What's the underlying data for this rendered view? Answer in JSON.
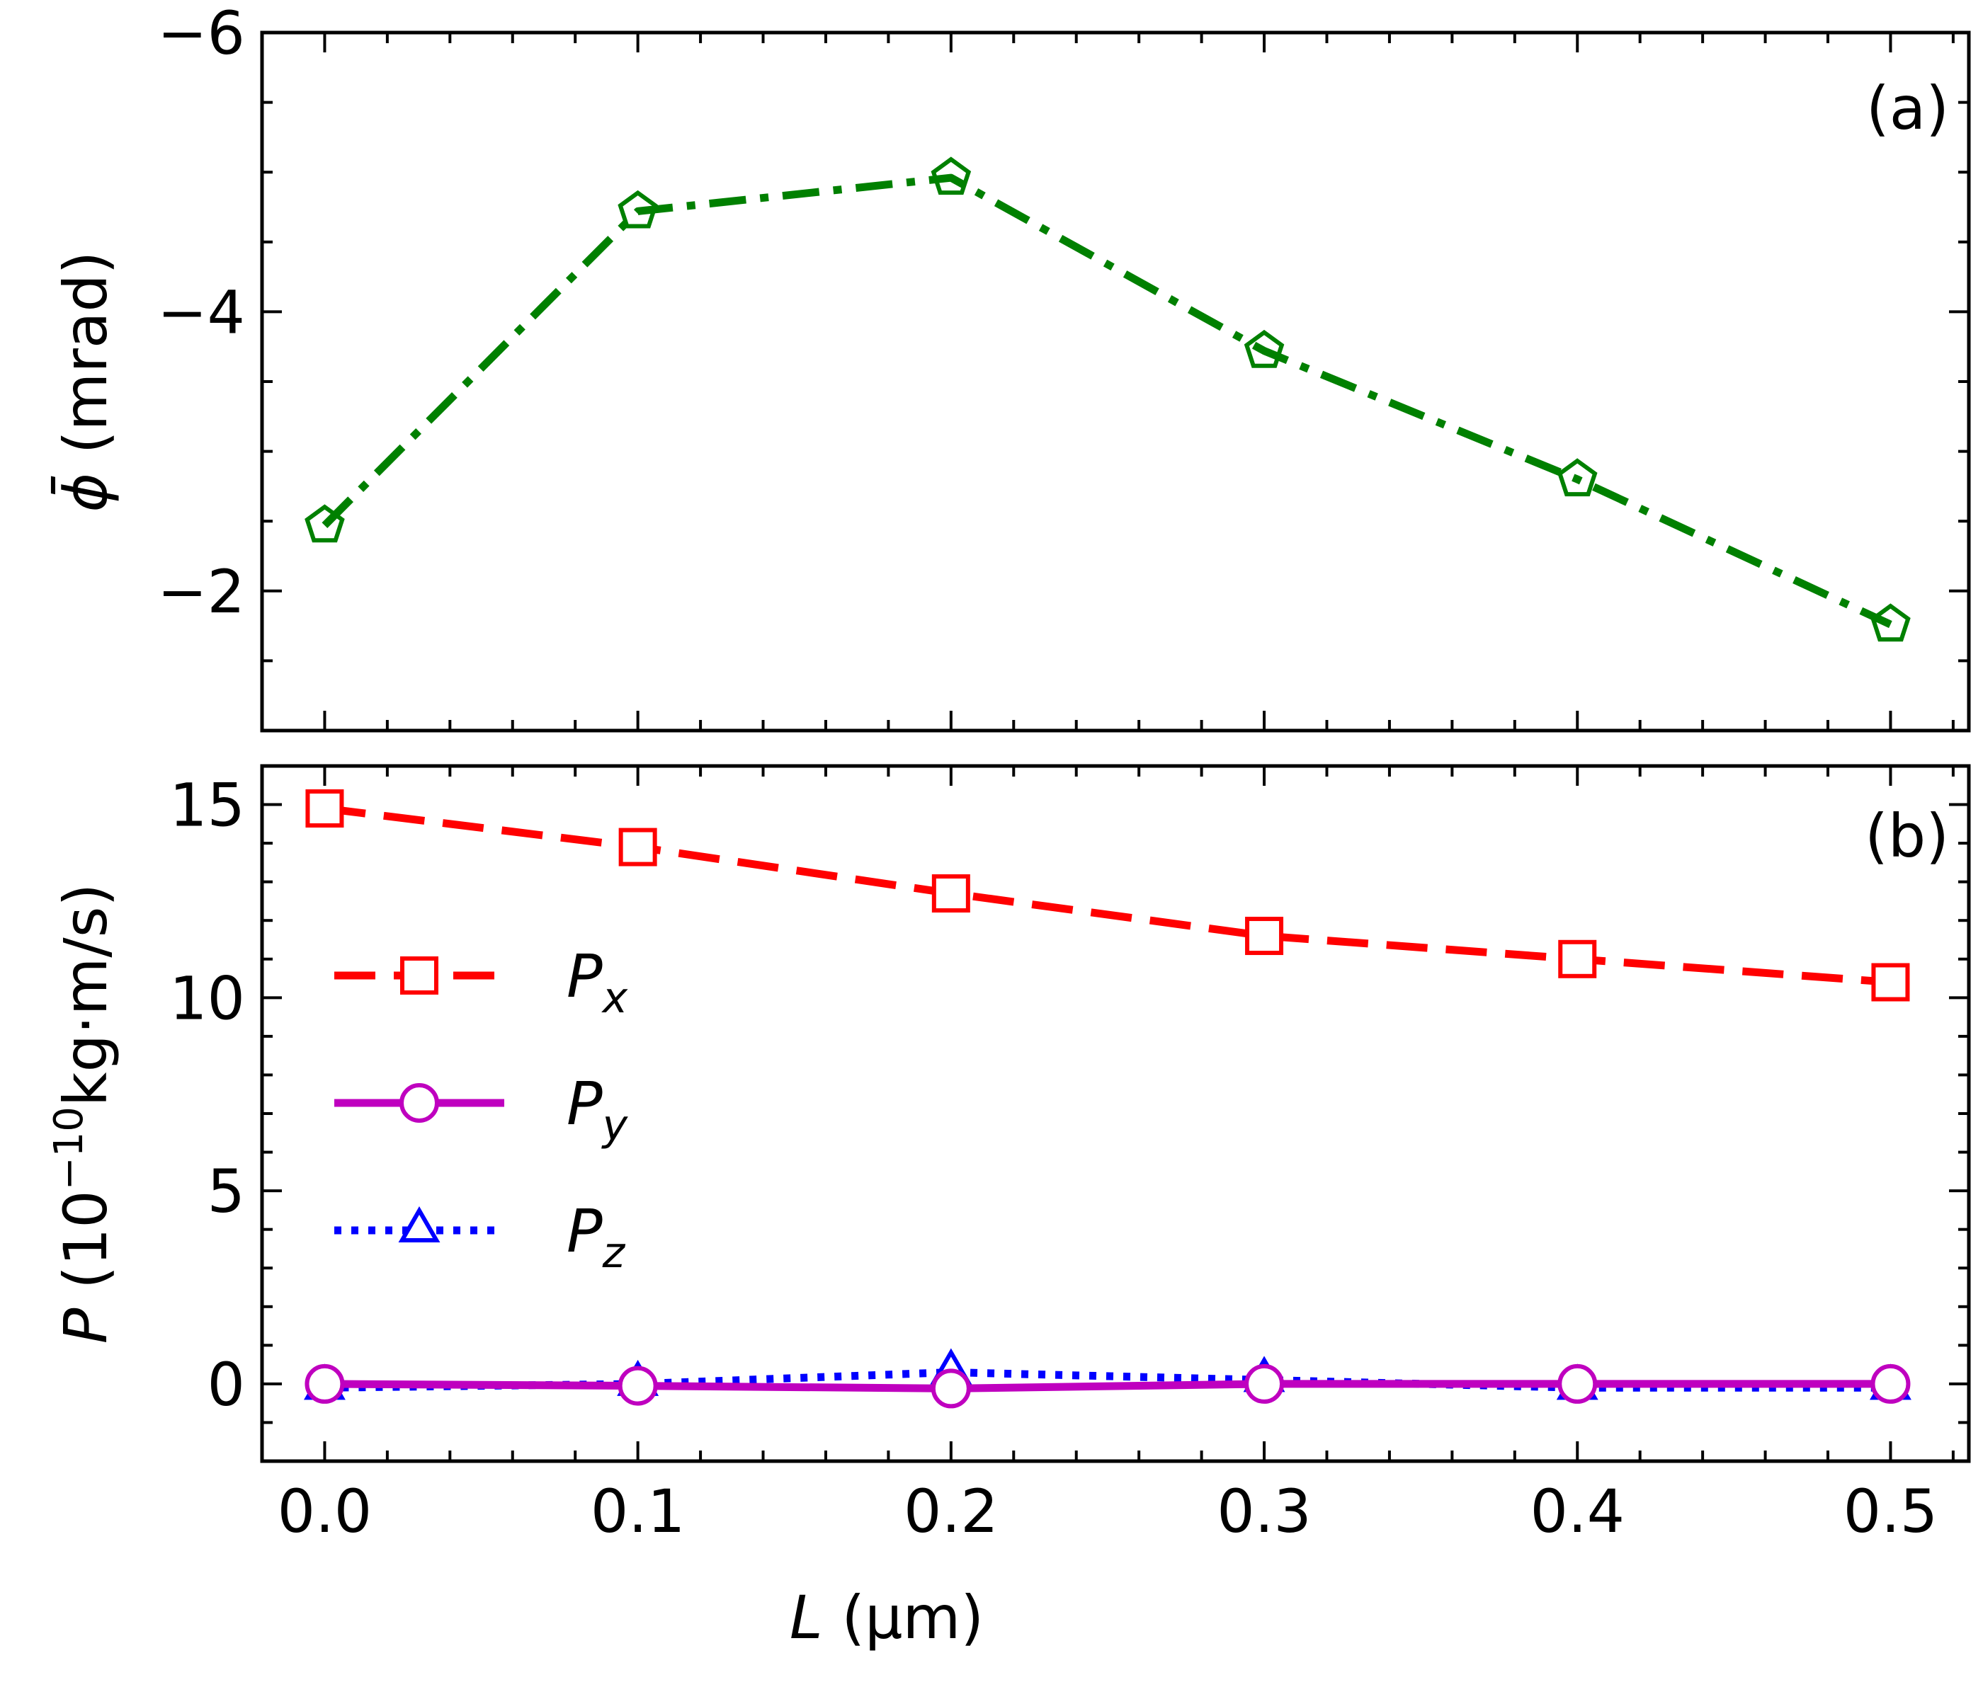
{
  "chart_data": [
    {
      "type": "line",
      "panel_tag": "(a)",
      "x": [
        0.0,
        0.1,
        0.2,
        0.3,
        0.4,
        0.5
      ],
      "series": [
        {
          "name": "phi_bar",
          "color": "#008000",
          "marker": "pentagon",
          "linestyle": "dashdot",
          "values": [
            -2.47,
            -4.72,
            -4.96,
            -3.72,
            -2.8,
            -1.76
          ]
        }
      ],
      "xlim": [
        -0.02,
        0.525
      ],
      "ylim": [
        -1.0,
        -6.0
      ],
      "y_inverted": true,
      "yticks": [
        -2,
        -4,
        -6
      ],
      "ytick_labels": [
        "−2",
        "−4",
        "−6"
      ],
      "ylabel": {
        "symbol": "ϕ̄",
        "unit": " (mrad)"
      },
      "xlabel": ""
    },
    {
      "type": "line",
      "panel_tag": "(b)",
      "x": [
        0.0,
        0.1,
        0.2,
        0.3,
        0.4,
        0.5
      ],
      "series": [
        {
          "name": "P",
          "sub": "x",
          "color": "#ff0000",
          "marker": "square",
          "linestyle": "dashed",
          "values": [
            14.9,
            13.9,
            12.7,
            11.6,
            11.0,
            10.4
          ]
        },
        {
          "name": "P",
          "sub": "y",
          "color": "#bf00bf",
          "marker": "circle",
          "linestyle": "solid",
          "values": [
            0.0,
            -0.05,
            -0.12,
            0.0,
            0.0,
            0.0
          ]
        },
        {
          "name": "P",
          "sub": "z",
          "color": "#0000ff",
          "marker": "triangle",
          "linestyle": "dotted",
          "values": [
            -0.1,
            0.0,
            0.3,
            0.1,
            -0.1,
            -0.1
          ]
        }
      ],
      "xlim": [
        -0.02,
        0.525
      ],
      "ylim": [
        -2.0,
        16.0
      ],
      "yticks": [
        0,
        5,
        10,
        15
      ],
      "ytick_labels": [
        "0",
        "5",
        "10",
        "15"
      ],
      "xticks": [
        0.0,
        0.1,
        0.2,
        0.3,
        0.4,
        0.5
      ],
      "xtick_labels": [
        "0.0",
        "0.1",
        "0.2",
        "0.3",
        "0.4",
        "0.5"
      ],
      "ylabel": {
        "symbol": "P",
        "unit_prefix": " (10",
        "unit_exp": "−10",
        "unit_suffix": "kg·m/s)"
      },
      "xlabel": {
        "symbol": "L",
        "unit": " (μm)"
      },
      "legend": "center-left"
    }
  ]
}
